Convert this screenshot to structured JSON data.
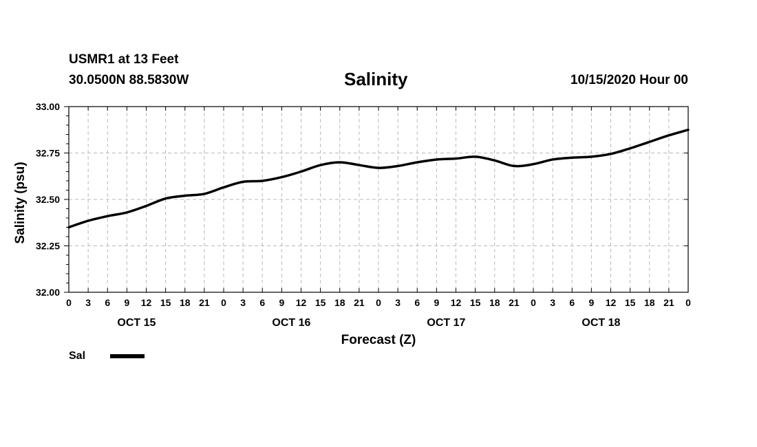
{
  "header": {
    "station": "USMR1 at 13 Feet",
    "coords": "30.0500N 88.5830W",
    "title": "Salinity",
    "datetime": "10/15/2020 Hour 00"
  },
  "chart_data": {
    "type": "line",
    "title": "Salinity",
    "xlabel": "Forecast (Z)",
    "ylabel": "Salinity (psu)",
    "ylim": [
      32.0,
      33.0
    ],
    "xlim": [
      0,
      96
    ],
    "y_ticks": [
      "32.00",
      "32.25",
      "32.50",
      "32.75",
      "33.00"
    ],
    "x_tick_labels": [
      "0",
      "3",
      "6",
      "9",
      "12",
      "15",
      "18",
      "21",
      "0",
      "3",
      "6",
      "9",
      "12",
      "15",
      "18",
      "21",
      "0",
      "3",
      "6",
      "9",
      "12",
      "15",
      "18",
      "21",
      "0",
      "3",
      "6",
      "9",
      "12",
      "15",
      "18",
      "21",
      "0"
    ],
    "day_labels": [
      "OCT 15",
      "OCT 16",
      "OCT 17",
      "OCT 18"
    ],
    "grid": true,
    "legend_position": "bottom-left",
    "series": [
      {
        "name": "Sal",
        "color": "#000000",
        "x": [
          0,
          3,
          6,
          9,
          12,
          15,
          18,
          21,
          24,
          27,
          30,
          33,
          36,
          39,
          42,
          45,
          48,
          51,
          54,
          57,
          60,
          63,
          66,
          69,
          72,
          75,
          78,
          81,
          84,
          87,
          90,
          93,
          96
        ],
        "values": [
          32.35,
          32.385,
          32.41,
          32.43,
          32.465,
          32.505,
          32.52,
          32.53,
          32.565,
          32.595,
          32.6,
          32.62,
          32.65,
          32.685,
          32.7,
          32.685,
          32.67,
          32.68,
          32.7,
          32.715,
          32.72,
          32.73,
          32.71,
          32.68,
          32.69,
          32.715,
          32.725,
          32.73,
          32.745,
          32.775,
          32.81,
          32.845,
          32.875
        ]
      }
    ]
  }
}
